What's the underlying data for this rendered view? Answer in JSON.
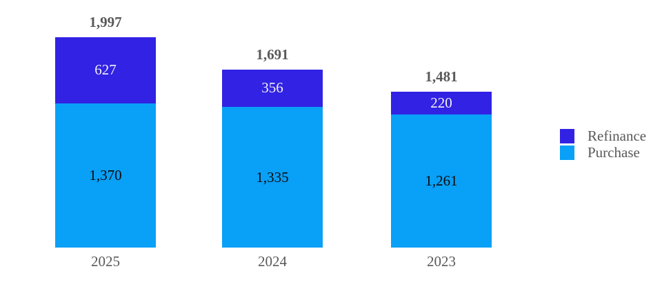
{
  "chart_data": {
    "type": "bar",
    "stacked": true,
    "orientation": "vertical",
    "title": "",
    "xlabel": "",
    "ylabel": "",
    "grid": false,
    "axes_visible": false,
    "legend_position": "right",
    "background": "#FFFFFF",
    "text_color": "#595959",
    "categories": [
      "2025",
      "2024",
      "2023"
    ],
    "series": [
      {
        "name": "Refinance",
        "color": "#3222E4",
        "label_color": "#F2F2F2",
        "values": [
          627,
          356,
          220
        ]
      },
      {
        "name": "Purchase",
        "color": "#09A0F7",
        "label_color": "#0A0A0A",
        "values": [
          1370,
          1335,
          1261
        ]
      }
    ],
    "totals": [
      1997,
      1691,
      1481
    ],
    "total_labels": [
      "1,997",
      "1,691",
      "1,481"
    ],
    "segment_labels": [
      [
        "627",
        "356",
        "220"
      ],
      [
        "1,370",
        "1,335",
        "1,261"
      ]
    ],
    "value_format": "thousands-comma"
  },
  "legend": {
    "items": [
      {
        "label": "Refinance"
      },
      {
        "label": "Purchase"
      }
    ]
  }
}
